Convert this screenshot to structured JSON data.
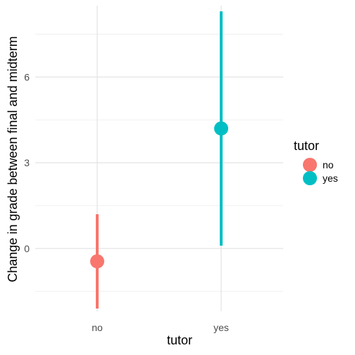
{
  "chart_data": {
    "type": "pointrange",
    "xlabel": "tutor",
    "ylabel": "Change in grade between final and midterm",
    "categories": [
      "no",
      "yes"
    ],
    "ylim": [
      -2.2,
      8.5
    ],
    "yticks": [
      0,
      3,
      6
    ],
    "ytick_labels": [
      "0",
      "3",
      "6"
    ],
    "grid": true,
    "series": [
      {
        "category": "no",
        "y": -0.45,
        "ymin": -2.1,
        "ymax": 1.2,
        "color": "#F8766D"
      },
      {
        "category": "yes",
        "y": 4.2,
        "ymin": 0.1,
        "ymax": 8.3,
        "color": "#00BFC4"
      }
    ],
    "legend": {
      "title": "tutor",
      "position": "right",
      "entries": [
        {
          "label": "no",
          "color": "#F8766D"
        },
        {
          "label": "yes",
          "color": "#00BFC4"
        }
      ]
    }
  }
}
